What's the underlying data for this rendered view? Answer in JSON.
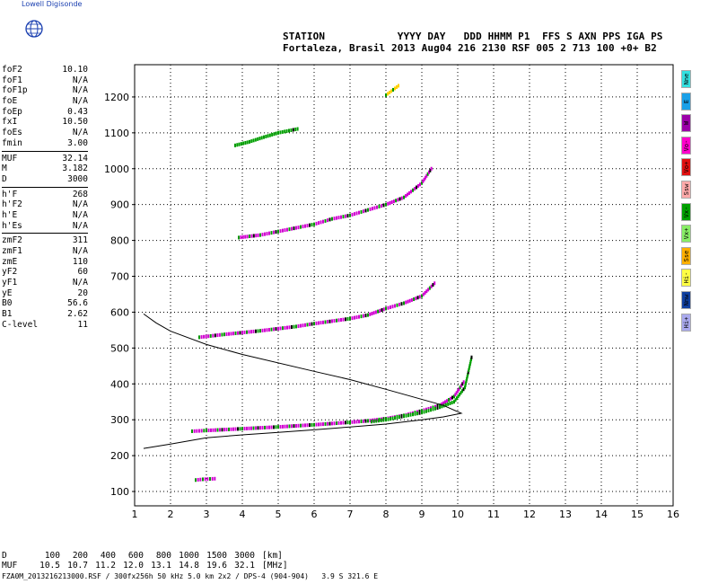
{
  "brand": {
    "name": "Lowell Digisonde",
    "icon": "globe-icon"
  },
  "header": {
    "line1": "STATION            YYYY DAY   DDD HHMM P1  FFS S AXN PPS IGA PS",
    "line2": "Fortaleza, Brasil 2013 Aug04 216 2130 RSF 005 2 713 100 +0+ B2"
  },
  "params": {
    "group1": [
      {
        "name": "foF2",
        "value": "10.10"
      },
      {
        "name": "foF1",
        "value": "N/A"
      },
      {
        "name": "foF1p",
        "value": "N/A"
      },
      {
        "name": "foE",
        "value": "N/A"
      },
      {
        "name": "foEp",
        "value": "0.43"
      },
      {
        "name": "fxI",
        "value": "10.50"
      },
      {
        "name": "foEs",
        "value": "N/A"
      },
      {
        "name": "fmin",
        "value": "3.00"
      }
    ],
    "group2": [
      {
        "name": "MUF",
        "value": "32.14"
      },
      {
        "name": "M",
        "value": "3.182"
      },
      {
        "name": "D",
        "value": "3000"
      }
    ],
    "group3": [
      {
        "name": "h'F",
        "value": "268"
      },
      {
        "name": "h'F2",
        "value": "N/A"
      },
      {
        "name": "h'E",
        "value": "N/A"
      },
      {
        "name": "h'Es",
        "value": "N/A"
      }
    ],
    "group4": [
      {
        "name": "zmF2",
        "value": "311"
      },
      {
        "name": "zmF1",
        "value": "N/A"
      },
      {
        "name": "zmE",
        "value": "110"
      },
      {
        "name": "yF2",
        "value": "60"
      },
      {
        "name": "yF1",
        "value": "N/A"
      },
      {
        "name": "yE",
        "value": "20"
      },
      {
        "name": "B0",
        "value": "56.6"
      },
      {
        "name": "B1",
        "value": "2.62"
      },
      {
        "name": "C-level",
        "value": "11"
      }
    ]
  },
  "legend": [
    {
      "label": "Nne",
      "color": "#33e0e0"
    },
    {
      "label": "E",
      "color": "#1aa0e8"
    },
    {
      "label": "W",
      "color": "#9b00a8"
    },
    {
      "label": "Vo-",
      "color": "#ff00cc"
    },
    {
      "label": "Vo+",
      "color": "#e01010"
    },
    {
      "label": "Ssw",
      "color": "#ffaaaa"
    },
    {
      "label": "Vx-",
      "color": "#00a000"
    },
    {
      "label": "Vx+",
      "color": "#88ee66"
    },
    {
      "label": "Sse",
      "color": "#ffb000"
    },
    {
      "label": "Hi-",
      "color": "#ffff44"
    },
    {
      "label": "Nnw",
      "color": "#1040a0"
    },
    {
      "label": "Hi+",
      "color": "#aaaaee"
    }
  ],
  "footer": {
    "d_label": "D",
    "d_values": [
      "100",
      "200",
      "400",
      "600",
      "800",
      "1000",
      "1500",
      "3000"
    ],
    "d_unit": "[km]",
    "muf_label": "MUF",
    "muf_values": [
      "10.5",
      "10.7",
      "11.2",
      "12.0",
      "13.1",
      "14.8",
      "19.6",
      "32.1"
    ],
    "muf_unit": "[MHz]",
    "file_line": "FZA0M_2013216213000.RSF / 300fx256h 50 kHz 5.0 km 2x2 / DPS-4 (904-904)   3.9 S 321.6 E"
  },
  "chart_data": {
    "type": "scatter",
    "xlim": [
      1,
      16
    ],
    "ylim": [
      60,
      1290
    ],
    "xticks": [
      1,
      2,
      3,
      4,
      5,
      6,
      7,
      8,
      9,
      10,
      11,
      12,
      13,
      14,
      15,
      16
    ],
    "yticks": [
      100,
      200,
      300,
      400,
      500,
      600,
      700,
      800,
      900,
      1000,
      1100,
      1200
    ],
    "grid": true,
    "profile": {
      "x": [
        1.25,
        2.0,
        3.0,
        4.0,
        5.0,
        6.0,
        7.0,
        8.0,
        9.0,
        9.6,
        10.1,
        9.6,
        8.0,
        7.0,
        6.0,
        4.0,
        3.0,
        2.0,
        1.6,
        1.25
      ],
      "y": [
        220,
        232,
        250,
        258,
        265,
        272,
        280,
        288,
        300,
        308,
        318,
        340,
        385,
        412,
        435,
        482,
        510,
        547,
        570,
        595
      ]
    },
    "traces": [
      {
        "name": "F1 O-trace",
        "x": [
          2.6,
          3.0,
          4.0,
          5.0,
          6.0,
          7.0,
          7.5,
          8.0,
          8.5,
          9.0,
          9.5,
          9.9,
          10.2
        ],
        "y": [
          268,
          270,
          275,
          280,
          286,
          293,
          297,
          303,
          312,
          325,
          340,
          365,
          410
        ],
        "color": "#d000d0"
      },
      {
        "name": "F1 X-trace",
        "x": [
          7.6,
          8.0,
          8.5,
          9.0,
          9.5,
          9.9,
          10.2,
          10.4
        ],
        "y": [
          295,
          300,
          310,
          320,
          335,
          350,
          390,
          480
        ],
        "color": "#00a000"
      },
      {
        "name": "E-echo",
        "x": [
          2.7,
          2.9,
          3.1,
          3.3
        ],
        "y": [
          132,
          134,
          135,
          136
        ],
        "color": "#d000d0"
      },
      {
        "name": "F2 2-hop",
        "x": [
          2.8,
          3.5,
          4.5,
          5.5,
          6.0,
          7.0,
          7.5,
          8.0,
          8.5,
          9.0,
          9.4
        ],
        "y": [
          530,
          538,
          548,
          560,
          568,
          582,
          592,
          610,
          625,
          645,
          685
        ],
        "color": "#d000d0"
      },
      {
        "name": "F 3-hop",
        "x": [
          3.9,
          4.5,
          5.0,
          6.0,
          6.5,
          7.0,
          7.5,
          8.0,
          8.5,
          9.0,
          9.3
        ],
        "y": [
          808,
          815,
          825,
          845,
          860,
          870,
          885,
          900,
          920,
          960,
          1005
        ],
        "color": "#d000d0"
      },
      {
        "name": "F 4-hop",
        "x": [
          3.8,
          4.2,
          4.6,
          5.0,
          5.6
        ],
        "y": [
          1065,
          1075,
          1088,
          1100,
          1112
        ],
        "color": "#00a000"
      },
      {
        "name": "top echo",
        "x": [
          8.0,
          8.2,
          8.4
        ],
        "y": [
          1205,
          1220,
          1235
        ],
        "color": "#ffd000"
      }
    ]
  }
}
